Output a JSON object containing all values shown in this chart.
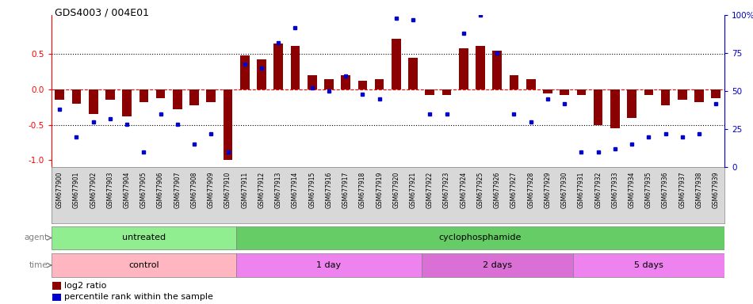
{
  "title": "GDS4003 / 004E01",
  "samples": [
    "GSM677900",
    "GSM677901",
    "GSM677902",
    "GSM677903",
    "GSM677904",
    "GSM677905",
    "GSM677906",
    "GSM677907",
    "GSM677908",
    "GSM677909",
    "GSM677910",
    "GSM677911",
    "GSM677912",
    "GSM677913",
    "GSM677914",
    "GSM677915",
    "GSM677916",
    "GSM677917",
    "GSM677918",
    "GSM677919",
    "GSM677920",
    "GSM677921",
    "GSM677922",
    "GSM677923",
    "GSM677924",
    "GSM677925",
    "GSM677926",
    "GSM677927",
    "GSM677928",
    "GSM677929",
    "GSM677930",
    "GSM677931",
    "GSM677932",
    "GSM677933",
    "GSM677934",
    "GSM677935",
    "GSM677936",
    "GSM677937",
    "GSM677938",
    "GSM677939"
  ],
  "log2_ratio": [
    -0.15,
    -0.2,
    -0.35,
    -0.15,
    -0.38,
    -0.18,
    -0.12,
    -0.28,
    -0.22,
    -0.18,
    -1.0,
    0.48,
    0.42,
    0.65,
    0.62,
    0.2,
    0.15,
    0.2,
    0.12,
    0.15,
    0.72,
    0.45,
    -0.08,
    -0.08,
    0.58,
    0.62,
    0.55,
    0.2,
    0.15,
    -0.06,
    -0.08,
    -0.08,
    -0.5,
    -0.55,
    -0.4,
    -0.08,
    -0.22,
    -0.15,
    -0.18,
    -0.12
  ],
  "percentile": [
    38,
    20,
    30,
    32,
    28,
    10,
    35,
    28,
    15,
    22,
    10,
    68,
    65,
    82,
    92,
    52,
    50,
    60,
    48,
    45,
    98,
    97,
    35,
    35,
    88,
    100,
    75,
    35,
    30,
    45,
    42,
    10,
    10,
    12,
    15,
    20,
    22,
    20,
    22,
    42
  ],
  "agent_groups": [
    {
      "label": "untreated",
      "start": 0,
      "end": 11,
      "color": "#90EE90"
    },
    {
      "label": "cyclophosphamide",
      "start": 11,
      "end": 40,
      "color": "#66CC66"
    }
  ],
  "time_groups": [
    {
      "label": "control",
      "start": 0,
      "end": 11,
      "color": "#FFB6C1"
    },
    {
      "label": "1 day",
      "start": 11,
      "end": 22,
      "color": "#EE82EE"
    },
    {
      "label": "2 days",
      "start": 22,
      "end": 31,
      "color": "#DA70D6"
    },
    {
      "label": "5 days",
      "start": 31,
      "end": 40,
      "color": "#EE82EE"
    }
  ],
  "bar_color": "#8B0000",
  "dot_color": "#0000CD",
  "ylim_left": [
    -1.1,
    1.05
  ],
  "ylim_right": [
    0,
    100
  ],
  "yticks_left": [
    -1.0,
    -0.5,
    0.0,
    0.5
  ],
  "yticks_right": [
    0,
    25,
    50,
    75,
    100
  ],
  "hline_values": [
    -0.5,
    0.0,
    0.5
  ],
  "legend_items": [
    {
      "label": "log2 ratio",
      "color": "#8B0000"
    },
    {
      "label": "percentile rank within the sample",
      "color": "#0000CD"
    }
  ],
  "label_bg_color": "#D8D8D8",
  "chart_bg_color": "#FFFFFF"
}
